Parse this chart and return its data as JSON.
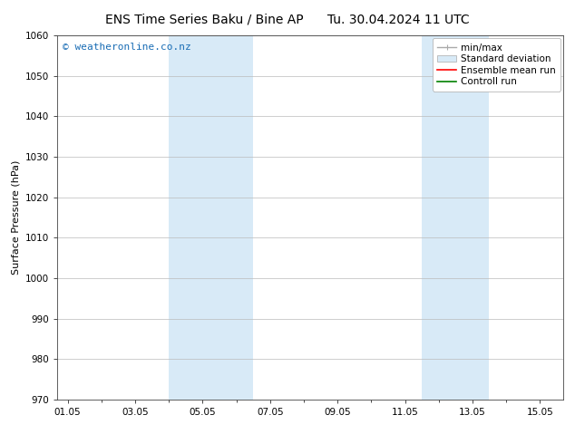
{
  "title_left": "ENS Time Series Baku / Bine AP",
  "title_right": "Tu. 30.04.2024 11 UTC",
  "ylabel": "Surface Pressure (hPa)",
  "ylim": [
    970,
    1060
  ],
  "yticks": [
    970,
    980,
    990,
    1000,
    1010,
    1020,
    1030,
    1040,
    1050,
    1060
  ],
  "xtick_labels": [
    "01.05",
    "03.05",
    "05.05",
    "07.05",
    "09.05",
    "11.05",
    "13.05",
    "15.05"
  ],
  "xtick_positions": [
    0,
    2,
    4,
    6,
    8,
    10,
    12,
    14
  ],
  "xlim": [
    -0.3,
    14.7
  ],
  "shade_bands": [
    {
      "x_start": 3.0,
      "x_end": 5.5,
      "color": "#d8eaf7"
    },
    {
      "x_start": 10.5,
      "x_end": 12.5,
      "color": "#d8eaf7"
    }
  ],
  "watermark_text": "© weatheronline.co.nz",
  "watermark_color": "#1a6db5",
  "watermark_fontsize": 8,
  "bg_color": "#ffffff",
  "grid_color": "#bbbbbb",
  "title_fontsize": 10,
  "ylabel_fontsize": 8,
  "tick_fontsize": 7.5,
  "legend_fontsize": 7.5
}
